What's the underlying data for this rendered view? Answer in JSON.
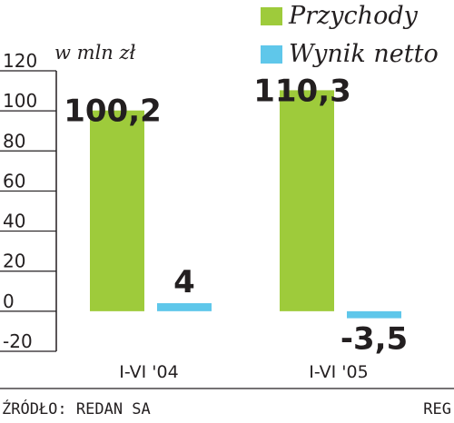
{
  "chart_data": {
    "type": "bar",
    "unit_label": "w mln zł",
    "categories": [
      "I-VI '04",
      "I-VI '05"
    ],
    "series": [
      {
        "name": "Przychody",
        "values": [
          100.2,
          110.3
        ],
        "labels": [
          "100,2",
          "110,3"
        ],
        "color": "#9ecb3b"
      },
      {
        "name": "Wynik netto",
        "values": [
          4,
          -3.5
        ],
        "labels": [
          "4",
          "-3,5"
        ],
        "color": "#5fc7ea"
      }
    ],
    "ylim": [
      -20,
      120
    ],
    "yticks": [
      -20,
      0,
      20,
      40,
      60,
      80,
      100,
      120
    ],
    "grid": false,
    "legend": "top-right"
  },
  "footer": {
    "source": "ŹRÓDŁO: REDAN SA",
    "credit": "REG"
  }
}
